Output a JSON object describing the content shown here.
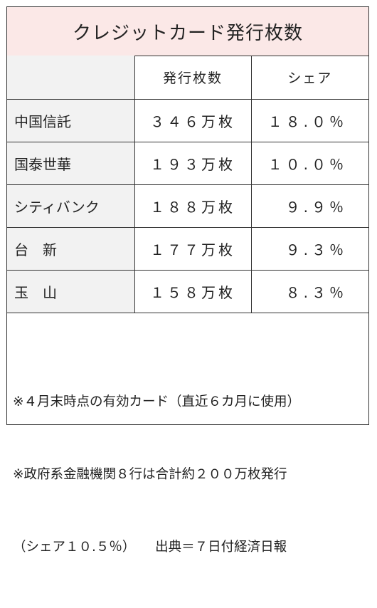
{
  "title": "クレジットカード発行枚数",
  "header": {
    "col1": "",
    "col2": "発行枚数",
    "col3": "シェア"
  },
  "rows": [
    {
      "name": "中国信託",
      "count": "３４６万枚",
      "share": "１８.０％"
    },
    {
      "name": "国泰世華",
      "count": "１９３万枚",
      "share": "１０.０％"
    },
    {
      "name": "シティバンク",
      "count": "１８８万枚",
      "share": "９.９％"
    },
    {
      "name": "台　新",
      "count": "１７７万枚",
      "share": "９.３％"
    },
    {
      "name": "玉　山",
      "count": "１５８万枚",
      "share": "８.３％"
    }
  ],
  "notes": [
    "※４月末時点の有効カード（直近６カ月に使用）",
    "※政府系金融機関８行は合計約２００万枚発行",
    "（シェア１０.５％）　　出典＝７日付経済日報"
  ]
}
